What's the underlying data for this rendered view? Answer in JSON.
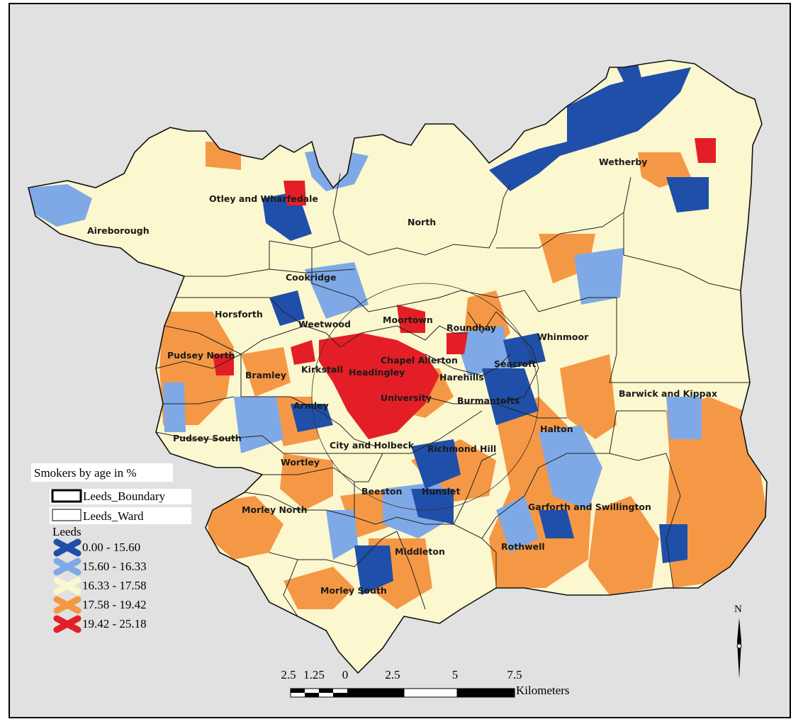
{
  "legend": {
    "title": "Smokers by age in %",
    "boundary_label": "Leeds_Boundary",
    "ward_label": "Leeds_Ward",
    "layer_label": "Leeds",
    "classes": [
      {
        "label": "0.00 - 15.60",
        "color": "#1f4fa8"
      },
      {
        "label": "15.60 - 16.33",
        "color": "#7fa9e6"
      },
      {
        "label": "16.33 - 17.58",
        "color": "#fbf7cf"
      },
      {
        "label": "17.58 - 19.42",
        "color": "#f59845"
      },
      {
        "label": "19.42 - 25.18",
        "color": "#e41e26"
      }
    ]
  },
  "wards": [
    "Wetherby",
    "Otley and Wharfedale",
    "North",
    "Aireborough",
    "Cookridge",
    "Horsforth",
    "Weetwood",
    "Moortown",
    "Roundhay",
    "Whinmoor",
    "Pudsey North",
    "Chapel Allerton",
    "Kirkstall",
    "Headingley",
    "Seacroft",
    "Bramley",
    "Harehills",
    "University",
    "Burmantofts",
    "Barwick and Kippax",
    "Armley",
    "Halton",
    "Pudsey South",
    "City and Holbeck",
    "Richmond Hill",
    "Wortley",
    "Beeston",
    "Hunslet",
    "Garforth and Swillington",
    "Morley North",
    "Middleton",
    "Rothwell",
    "Morley South"
  ],
  "scale_bar": {
    "ticks": [
      "2.5",
      "1.25",
      "0",
      "2.5",
      "5",
      "7.5"
    ],
    "unit": "Kilometers"
  },
  "north_arrow": {
    "label": "N"
  }
}
